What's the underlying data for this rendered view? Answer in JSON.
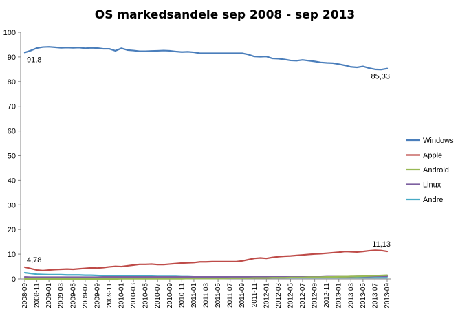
{
  "chart_data": {
    "type": "line",
    "title": "OS markedsandele sep 2008 - sep 2013",
    "xlabel": "",
    "ylabel": "",
    "ylim": [
      0,
      100
    ],
    "yticks": [
      0,
      10,
      20,
      30,
      40,
      50,
      60,
      70,
      80,
      90,
      100
    ],
    "grid": false,
    "legend_position": "right",
    "x": [
      "2008-09",
      "2008-10",
      "2008-11",
      "2008-12",
      "2009-01",
      "2009-02",
      "2009-03",
      "2009-04",
      "2009-05",
      "2009-06",
      "2009-07",
      "2009-08",
      "2009-09",
      "2009-10",
      "2009-11",
      "2009-12",
      "2010-01",
      "2010-02",
      "2010-03",
      "2010-04",
      "2010-05",
      "2010-06",
      "2010-07",
      "2010-08",
      "2010-09",
      "2010-10",
      "2010-11",
      "2010-12",
      "2011-01",
      "2011-02",
      "2011-03",
      "2011-04",
      "2011-05",
      "2011-06",
      "2011-07",
      "2011-08",
      "2011-09",
      "2011-10",
      "2011-11",
      "2011-12",
      "2012-01",
      "2012-02",
      "2012-03",
      "2012-04",
      "2012-05",
      "2012-06",
      "2012-07",
      "2012-08",
      "2012-09",
      "2012-10",
      "2012-11",
      "2012-12",
      "2013-01",
      "2013-02",
      "2013-03",
      "2013-04",
      "2013-05",
      "2013-06",
      "2013-07",
      "2013-08",
      "2013-09"
    ],
    "xtick_labels": [
      "2008-09",
      "2008-11",
      "2009-01",
      "2009-03",
      "2009-05",
      "2009-07",
      "2009-09",
      "2009-11",
      "2010-01",
      "2010-03",
      "2010-05",
      "2010-07",
      "2010-09",
      "2010-11",
      "2011-01",
      "2011-03",
      "2011-05",
      "2011-07",
      "2011-09",
      "2011-11",
      "2012-01",
      "2012-03",
      "2012-05",
      "2012-07",
      "2012-09",
      "2012-11",
      "2013-01",
      "2013-03",
      "2013-05",
      "2013-07",
      "2013-09"
    ],
    "series": [
      {
        "name": "Windows",
        "color": "#4a7ebb",
        "values": [
          91.8,
          92.6,
          93.6,
          94.0,
          94.1,
          93.9,
          93.7,
          93.8,
          93.7,
          93.8,
          93.5,
          93.7,
          93.6,
          93.3,
          93.3,
          92.5,
          93.5,
          92.8,
          92.6,
          92.3,
          92.3,
          92.4,
          92.5,
          92.6,
          92.5,
          92.2,
          92.0,
          92.1,
          91.9,
          91.5,
          91.5,
          91.5,
          91.5,
          91.5,
          91.5,
          91.5,
          91.5,
          91.0,
          90.2,
          90.1,
          90.2,
          89.4,
          89.3,
          89.0,
          88.6,
          88.5,
          88.8,
          88.5,
          88.2,
          87.8,
          87.6,
          87.5,
          87.1,
          86.6,
          86.0,
          85.8,
          86.2,
          85.5,
          85.0,
          84.9,
          85.33
        ]
      },
      {
        "name": "Apple",
        "color": "#be4b48",
        "values": [
          4.78,
          4.2,
          3.6,
          3.4,
          3.6,
          3.8,
          3.9,
          4.0,
          3.9,
          4.1,
          4.3,
          4.5,
          4.4,
          4.6,
          4.9,
          5.1,
          5.0,
          5.3,
          5.6,
          5.9,
          5.9,
          6.0,
          5.8,
          5.8,
          6.0,
          6.2,
          6.4,
          6.5,
          6.6,
          6.9,
          6.9,
          7.0,
          7.0,
          7.0,
          7.0,
          7.0,
          7.3,
          7.8,
          8.3,
          8.5,
          8.3,
          8.7,
          9.0,
          9.2,
          9.3,
          9.5,
          9.7,
          9.9,
          10.1,
          10.2,
          10.4,
          10.6,
          10.8,
          11.1,
          11.0,
          10.9,
          11.1,
          11.4,
          11.6,
          11.5,
          11.13
        ]
      },
      {
        "name": "Android",
        "color": "#98b954",
        "values": [
          0,
          0,
          0,
          0,
          0,
          0,
          0,
          0,
          0,
          0,
          0,
          0,
          0,
          0,
          0,
          0,
          0.1,
          0.1,
          0.1,
          0.1,
          0.1,
          0.1,
          0.1,
          0.1,
          0.1,
          0.1,
          0.1,
          0.2,
          0.2,
          0.2,
          0.2,
          0.2,
          0.2,
          0.2,
          0.3,
          0.3,
          0.3,
          0.3,
          0.4,
          0.4,
          0.4,
          0.5,
          0.5,
          0.5,
          0.6,
          0.6,
          0.6,
          0.7,
          0.7,
          0.7,
          0.8,
          0.8,
          0.9,
          0.9,
          1.0,
          1.0,
          1.1,
          1.2,
          1.3,
          1.4,
          1.5
        ]
      },
      {
        "name": "Linux",
        "color": "#7d60a0",
        "values": [
          0.8,
          0.7,
          0.7,
          0.7,
          0.7,
          0.7,
          0.7,
          0.7,
          0.7,
          0.7,
          0.7,
          0.7,
          0.7,
          0.8,
          0.8,
          0.8,
          0.8,
          0.8,
          0.8,
          0.8,
          0.8,
          0.8,
          0.8,
          0.8,
          0.8,
          0.8,
          0.8,
          0.8,
          0.8,
          0.8,
          0.8,
          0.8,
          0.8,
          0.8,
          0.8,
          0.8,
          0.8,
          0.8,
          0.8,
          0.8,
          0.8,
          0.8,
          0.8,
          0.8,
          0.8,
          0.8,
          0.8,
          0.8,
          0.8,
          0.8,
          0.9,
          0.9,
          0.9,
          0.9,
          0.9,
          1.0,
          1.0,
          1.0,
          1.1,
          1.1,
          1.1
        ]
      },
      {
        "name": "Andre",
        "color": "#46aac5",
        "values": [
          2.5,
          2.2,
          1.9,
          1.8,
          1.7,
          1.7,
          1.7,
          1.6,
          1.6,
          1.6,
          1.5,
          1.5,
          1.4,
          1.3,
          1.2,
          1.3,
          1.2,
          1.2,
          1.2,
          1.1,
          1.1,
          1.1,
          1.0,
          1.0,
          1.0,
          1.0,
          0.9,
          0.9,
          0.8,
          0.7,
          0.7,
          0.7,
          0.7,
          0.7,
          0.6,
          0.6,
          0.6,
          0.6,
          0.5,
          0.5,
          0.5,
          0.5,
          0.5,
          0.5,
          0.5,
          0.5,
          0.5,
          0.5,
          0.5,
          0.5,
          0.5,
          0.5,
          0.5,
          0.5,
          0.5,
          0.5,
          0.5,
          0.5,
          0.5,
          0.5,
          0.5
        ]
      }
    ],
    "annotations": [
      {
        "text": "91,8",
        "series": "Windows",
        "index": 0,
        "pos": "below-right"
      },
      {
        "text": "85,33",
        "series": "Windows",
        "index": 60,
        "pos": "below-left"
      },
      {
        "text": "4,78",
        "series": "Apple",
        "index": 0,
        "pos": "above-right"
      },
      {
        "text": "11,13",
        "series": "Apple",
        "index": 60,
        "pos": "above-left"
      }
    ]
  }
}
